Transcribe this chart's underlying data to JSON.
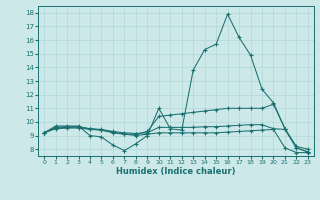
{
  "xlabel": "Humidex (Indice chaleur)",
  "bg_color": "#cde8e8",
  "line_color": "#1a7070",
  "grid_color": "#b0d8d8",
  "xlim": [
    -0.5,
    23.5
  ],
  "ylim": [
    7.5,
    18.5
  ],
  "yticks": [
    8,
    9,
    10,
    11,
    12,
    13,
    14,
    15,
    16,
    17,
    18
  ],
  "xticks": [
    0,
    1,
    2,
    3,
    4,
    5,
    6,
    7,
    8,
    9,
    10,
    11,
    12,
    13,
    14,
    15,
    16,
    17,
    18,
    19,
    20,
    21,
    22,
    23
  ],
  "series": {
    "s1": [
      9.2,
      9.7,
      9.7,
      9.7,
      9.0,
      8.9,
      8.3,
      7.9,
      8.4,
      9.0,
      11.0,
      9.5,
      9.4,
      13.8,
      15.3,
      15.7,
      17.9,
      16.2,
      14.9,
      12.4,
      11.4,
      9.5,
      8.2,
      8.0
    ],
    "s2": [
      9.2,
      9.6,
      9.65,
      9.65,
      9.5,
      9.4,
      9.2,
      9.1,
      9.1,
      9.3,
      10.4,
      10.5,
      10.6,
      10.7,
      10.8,
      10.9,
      11.0,
      11.0,
      11.0,
      11.0,
      11.3,
      9.5,
      8.1,
      7.8
    ],
    "s3": [
      9.2,
      9.55,
      9.6,
      9.62,
      9.5,
      9.45,
      9.3,
      9.2,
      9.15,
      9.2,
      9.6,
      9.6,
      9.6,
      9.6,
      9.65,
      9.65,
      9.7,
      9.75,
      9.8,
      9.8,
      9.5,
      9.45,
      8.1,
      7.8
    ],
    "s4": [
      9.2,
      9.5,
      9.55,
      9.55,
      9.45,
      9.4,
      9.25,
      9.1,
      9.0,
      9.1,
      9.2,
      9.2,
      9.2,
      9.2,
      9.2,
      9.2,
      9.25,
      9.3,
      9.35,
      9.4,
      9.45,
      8.1,
      7.75,
      7.75
    ]
  }
}
